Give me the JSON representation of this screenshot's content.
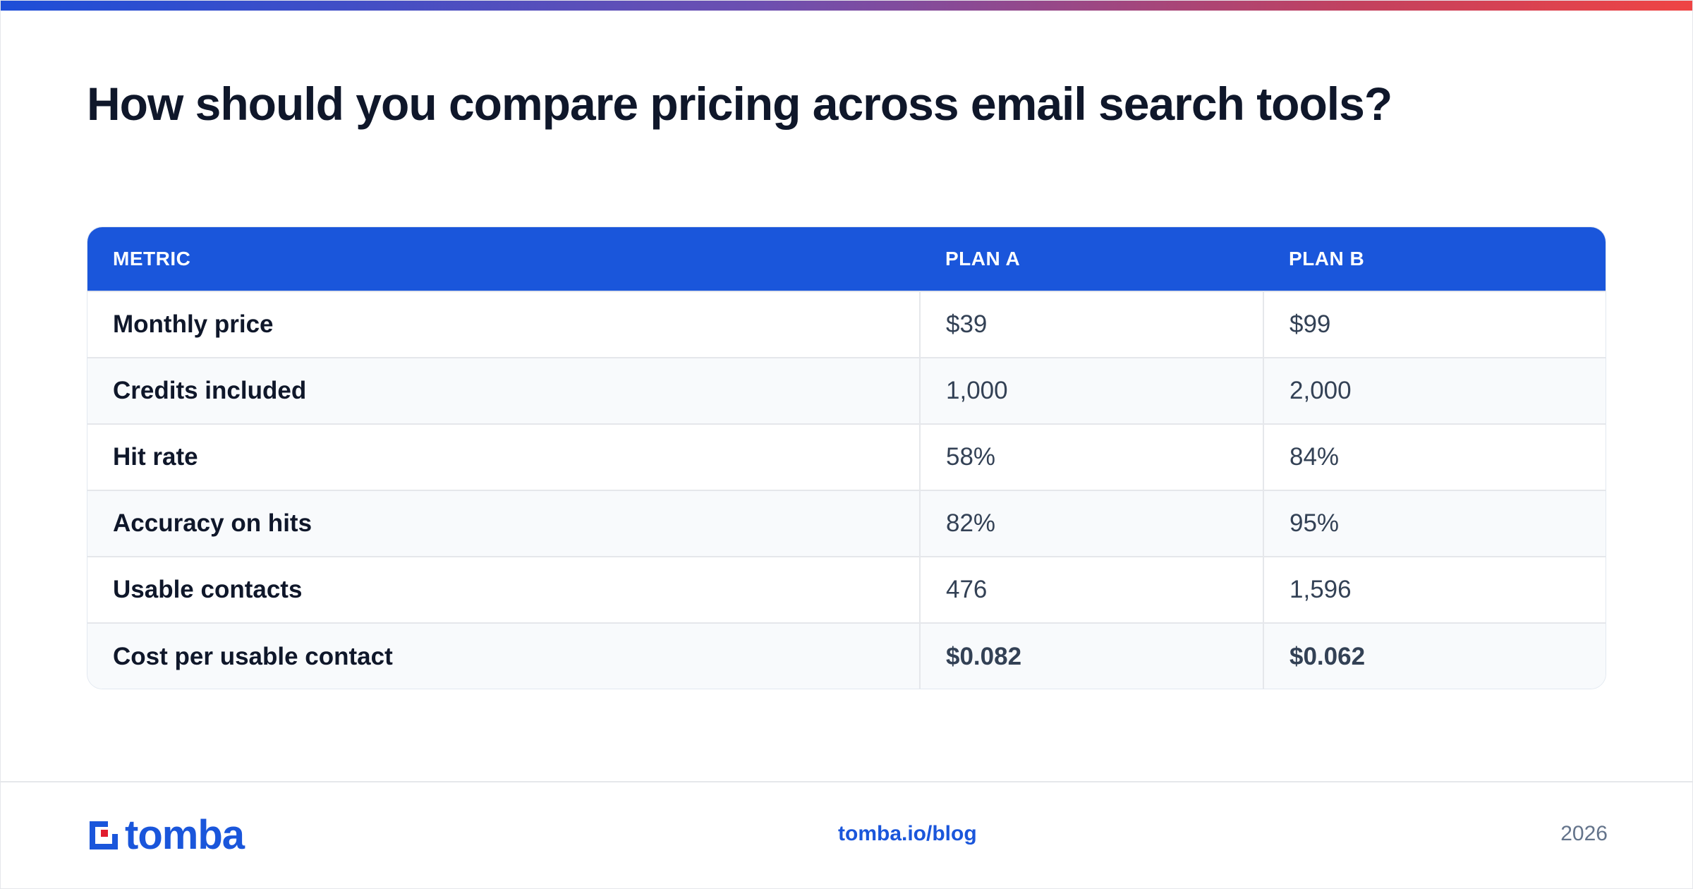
{
  "headline": "How should you compare pricing across email search tools?",
  "table": {
    "headers": [
      "METRIC",
      "PLAN A",
      "PLAN B"
    ],
    "rows": [
      {
        "metric": "Monthly price",
        "plan_a": "$39",
        "plan_b": "$99"
      },
      {
        "metric": "Credits included",
        "plan_a": "1,000",
        "plan_b": "2,000"
      },
      {
        "metric": "Hit rate",
        "plan_a": "58%",
        "plan_b": "84%"
      },
      {
        "metric": "Accuracy on hits",
        "plan_a": "82%",
        "plan_b": "95%"
      },
      {
        "metric": "Usable contacts",
        "plan_a": "476",
        "plan_b": "1,596"
      },
      {
        "metric": "Cost per usable contact",
        "plan_a": "$0.082",
        "plan_b": "$0.062"
      }
    ]
  },
  "footer": {
    "logo_text": "tomba",
    "link": "tomba.io/blog",
    "year": "2026"
  },
  "colors": {
    "brand_blue": "#1a56db",
    "logo_red": "#e11d2e",
    "text_dark": "#0f172a",
    "gradient_start": "#1d4ed8",
    "gradient_end": "#ef4444"
  }
}
